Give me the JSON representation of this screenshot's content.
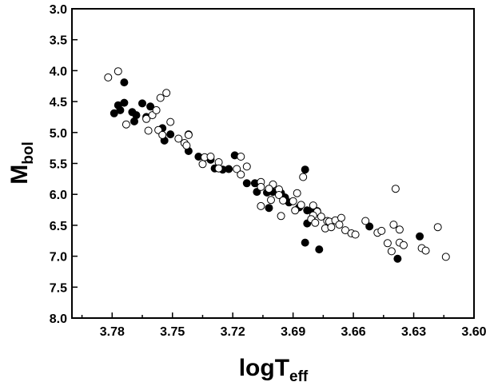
{
  "chart_data": {
    "type": "scatter",
    "title": "",
    "xlabel": {
      "main": "logT",
      "sub": "eff"
    },
    "ylabel": {
      "main": "M",
      "sub": "bol"
    },
    "xlim": [
      3.8,
      3.6
    ],
    "ylim": [
      8.0,
      3.0
    ],
    "x_reversed": true,
    "y_reversed": true,
    "xticks": [
      "3.78",
      "3.75",
      "3.72",
      "3.69",
      "3.66",
      "3.63",
      "3.60"
    ],
    "yticks": [
      "3.0",
      "3.5",
      "4.0",
      "4.5",
      "5.0",
      "5.5",
      "6.0",
      "6.5",
      "7.0",
      "7.5",
      "8.0"
    ],
    "grid": false,
    "legend": "none",
    "series": [
      {
        "marker": "filled-circle",
        "color": "#000000",
        "points": [
          [
            3.774,
            4.19
          ],
          [
            3.774,
            4.52
          ],
          [
            3.777,
            4.56
          ],
          [
            3.776,
            4.64
          ],
          [
            3.779,
            4.69
          ],
          [
            3.77,
            4.67
          ],
          [
            3.768,
            4.72
          ],
          [
            3.769,
            4.82
          ],
          [
            3.765,
            4.53
          ],
          [
            3.761,
            4.58
          ],
          [
            3.763,
            4.75
          ],
          [
            3.755,
            4.93
          ],
          [
            3.754,
            5.13
          ],
          [
            3.751,
            5.03
          ],
          [
            3.742,
            5.03
          ],
          [
            3.742,
            5.3
          ],
          [
            3.737,
            5.39
          ],
          [
            3.731,
            5.44
          ],
          [
            3.729,
            5.58
          ],
          [
            3.725,
            5.6
          ],
          [
            3.722,
            5.59
          ],
          [
            3.719,
            5.37
          ],
          [
            3.713,
            5.82
          ],
          [
            3.709,
            5.82
          ],
          [
            3.708,
            5.96
          ],
          [
            3.703,
            5.97
          ],
          [
            3.7,
            5.96
          ],
          [
            3.702,
            6.22
          ],
          [
            3.696,
            5.98
          ],
          [
            3.694,
            6.05
          ],
          [
            3.692,
            6.13
          ],
          [
            3.687,
            6.21
          ],
          [
            3.684,
            5.6
          ],
          [
            3.683,
            6.26
          ],
          [
            3.683,
            6.47
          ],
          [
            3.68,
            6.25
          ],
          [
            3.678,
            6.27
          ],
          [
            3.684,
            6.78
          ],
          [
            3.677,
            6.89
          ],
          [
            3.652,
            6.52
          ],
          [
            3.638,
            7.04
          ],
          [
            3.627,
            6.68
          ]
        ]
      },
      {
        "marker": "open-circle",
        "color": "#000000",
        "points": [
          [
            3.782,
            4.11
          ],
          [
            3.777,
            4.01
          ],
          [
            3.773,
            4.87
          ],
          [
            3.763,
            4.78
          ],
          [
            3.76,
            4.72
          ],
          [
            3.758,
            4.64
          ],
          [
            3.756,
            4.44
          ],
          [
            3.753,
            4.36
          ],
          [
            3.762,
            4.97
          ],
          [
            3.757,
            4.96
          ],
          [
            3.751,
            4.83
          ],
          [
            3.755,
            5.04
          ],
          [
            3.747,
            5.1
          ],
          [
            3.742,
            5.04
          ],
          [
            3.744,
            5.17
          ],
          [
            3.743,
            5.21
          ],
          [
            3.734,
            5.4
          ],
          [
            3.731,
            5.39
          ],
          [
            3.735,
            5.51
          ],
          [
            3.727,
            5.48
          ],
          [
            3.727,
            5.58
          ],
          [
            3.716,
            5.39
          ],
          [
            3.718,
            5.59
          ],
          [
            3.716,
            5.68
          ],
          [
            3.713,
            5.55
          ],
          [
            3.706,
            5.8
          ],
          [
            3.706,
            5.88
          ],
          [
            3.7,
            5.84
          ],
          [
            3.702,
            5.91
          ],
          [
            3.697,
            5.92
          ],
          [
            3.697,
            6.01
          ],
          [
            3.701,
            6.09
          ],
          [
            3.695,
            6.1
          ],
          [
            3.706,
            6.19
          ],
          [
            3.696,
            6.35
          ],
          [
            3.69,
            6.11
          ],
          [
            3.688,
            5.98
          ],
          [
            3.685,
            5.72
          ],
          [
            3.686,
            6.17
          ],
          [
            3.689,
            6.26
          ],
          [
            3.68,
            6.18
          ],
          [
            3.678,
            6.28
          ],
          [
            3.68,
            6.34
          ],
          [
            3.681,
            6.4
          ],
          [
            3.679,
            6.46
          ],
          [
            3.676,
            6.36
          ],
          [
            3.673,
            6.43
          ],
          [
            3.674,
            6.55
          ],
          [
            3.672,
            6.44
          ],
          [
            3.671,
            6.53
          ],
          [
            3.669,
            6.42
          ],
          [
            3.666,
            6.38
          ],
          [
            3.667,
            6.49
          ],
          [
            3.664,
            6.58
          ],
          [
            3.661,
            6.63
          ],
          [
            3.659,
            6.65
          ],
          [
            3.654,
            6.43
          ],
          [
            3.648,
            6.62
          ],
          [
            3.646,
            6.59
          ],
          [
            3.64,
            6.49
          ],
          [
            3.637,
            6.57
          ],
          [
            3.637,
            6.78
          ],
          [
            3.635,
            6.82
          ],
          [
            3.641,
            6.92
          ],
          [
            3.643,
            6.79
          ],
          [
            3.626,
            6.87
          ],
          [
            3.624,
            6.91
          ],
          [
            3.618,
            6.53
          ],
          [
            3.614,
            7.01
          ],
          [
            3.639,
            5.91
          ]
        ]
      }
    ]
  }
}
